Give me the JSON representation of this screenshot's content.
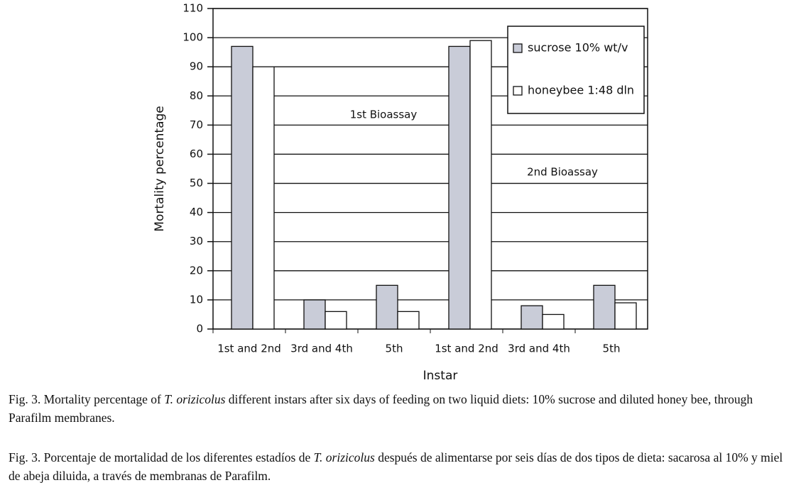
{
  "chart_data": {
    "type": "bar",
    "categories": [
      "1st and 2nd",
      "3rd and 4th",
      "5th",
      "1st and 2nd",
      "3rd and 4th",
      "5th"
    ],
    "series": [
      {
        "name": "sucrose 10% wt/v",
        "color": "#c9ccd8",
        "values": [
          97,
          10,
          15,
          97,
          8,
          15
        ]
      },
      {
        "name": "honeybee 1:48 dln",
        "color": "#ffffff",
        "values": [
          90,
          6,
          6,
          99,
          5,
          9
        ]
      }
    ],
    "ylim": [
      0,
      110
    ],
    "yticks": [
      0,
      10,
      20,
      30,
      40,
      50,
      60,
      70,
      80,
      90,
      100,
      110
    ],
    "grid": true,
    "legend": "upper right",
    "y_label": "Mortality percentage",
    "x_label": "Instar",
    "annotations": [
      "1st Bioassay",
      "2nd Bioassay"
    ]
  },
  "captions": [
    [
      "Fig. 3. Mortality percentage of ",
      "T. orizicolus",
      " different instars after six days of feeding on two liquid diets: 10% sucrose and diluted honey bee, through Parafilm membranes."
    ],
    [
      "Fig. 3. Porcentaje de mortalidad de los diferentes estadíos de ",
      "T. orizicolus",
      " después de alimentarse por seis días de dos tipos de dieta: sacarosa al 10% y miel de abeja diluida, a través de membranas de Parafilm."
    ]
  ]
}
